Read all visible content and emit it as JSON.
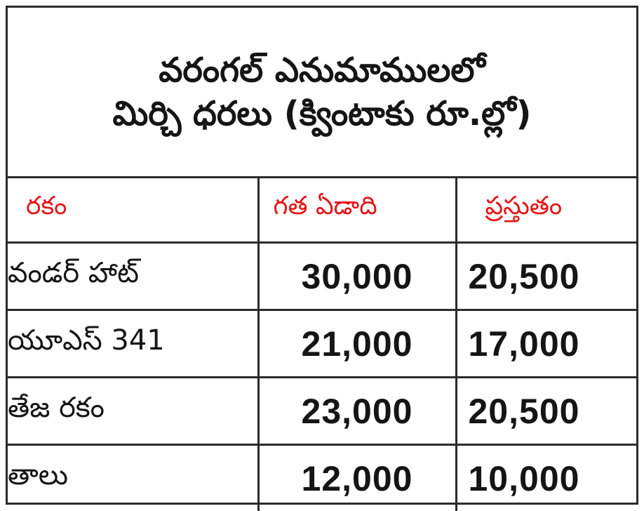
{
  "title": {
    "line1": "వరంగల్ ఎనుమాములలో",
    "line2": "మిర్చి ధరలు (క్వింటాకు రూ.ల్లో)"
  },
  "table": {
    "headers": [
      "రకం",
      "గత ఏడాది",
      "ప్రస్తుతం"
    ],
    "rows": [
      {
        "variety": "వండర్ హాట్",
        "last_year": "30,000",
        "current": "20,500"
      },
      {
        "variety": "యూఎస్ 341",
        "last_year": "21,000",
        "current": "17,000"
      },
      {
        "variety": "తేజ రకం",
        "last_year": "23,000",
        "current": "20,500"
      },
      {
        "variety": "తాలు",
        "last_year": "12,000",
        "current": "10,000"
      }
    ]
  },
  "colors": {
    "header_text": "#e3161b",
    "body_text": "#151515",
    "border": "#2b2b2b"
  }
}
